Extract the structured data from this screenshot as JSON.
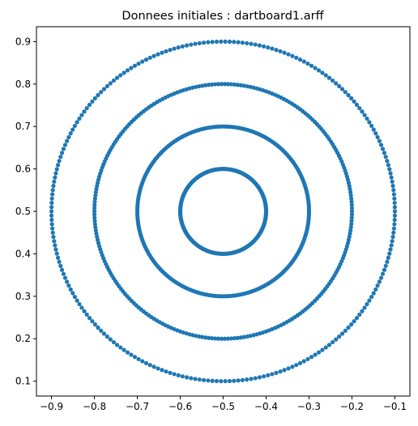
{
  "chart_data": {
    "type": "scatter",
    "title": "Donnees initiales : dartboard1.arff",
    "xlabel": "",
    "ylabel": "",
    "xlim": [
      -0.935,
      -0.065
    ],
    "ylim": [
      0.065,
      0.935
    ],
    "xticks": [
      -0.9,
      -0.8,
      -0.7,
      -0.6,
      -0.5,
      -0.4,
      -0.3,
      -0.2,
      -0.1
    ],
    "yticks": [
      0.1,
      0.2,
      0.3,
      0.4,
      0.5,
      0.6,
      0.7,
      0.8,
      0.9
    ],
    "xtick_labels": [
      "−0.9",
      "−0.8",
      "−0.7",
      "−0.6",
      "−0.5",
      "−0.4",
      "−0.3",
      "−0.2",
      "−0.1"
    ],
    "ytick_labels": [
      "0.1",
      "0.2",
      "0.3",
      "0.4",
      "0.5",
      "0.6",
      "0.7",
      "0.8",
      "0.9"
    ],
    "grid": false,
    "legend": "none",
    "marker_color": "#1f77b4",
    "series": [
      {
        "center": [
          -0.5,
          0.5
        ],
        "rings": [
          {
            "radius": 0.1,
            "points": 250
          },
          {
            "radius": 0.2,
            "points": 250
          },
          {
            "radius": 0.3,
            "points": 250
          },
          {
            "radius": 0.4,
            "points": 250
          }
        ]
      }
    ]
  }
}
